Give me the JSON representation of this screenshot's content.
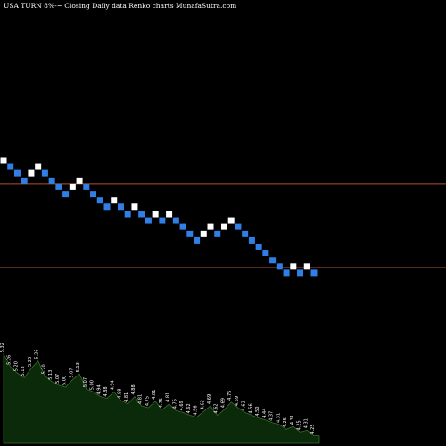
{
  "chart_data": {
    "type": "renko",
    "title": "USA TURN  8%-~  Closing Daily data  Renko  charts MunafaSutra.com",
    "colors": {
      "background": "#000000",
      "up_brick": "#ffffff",
      "down_brick": "#2f7fe6",
      "reference_line": "#b5512c",
      "volume_fill": "#0a2a0a",
      "volume_edge": "#3a6b2a"
    },
    "grid": false,
    "reference_levels": [
      {
        "name": "upper",
        "value": 5.1
      },
      {
        "name": "lower",
        "value": 4.3
      }
    ],
    "y_range": [
      2.6,
      6.85
    ],
    "bricks": [
      {
        "dir": "up",
        "value": 5.32
      },
      {
        "dir": "down",
        "value": 5.26
      },
      {
        "dir": "down",
        "value": 5.2
      },
      {
        "dir": "down",
        "value": 5.13
      },
      {
        "dir": "up",
        "value": 5.2
      },
      {
        "dir": "up",
        "value": 5.26
      },
      {
        "dir": "down",
        "value": 5.2
      },
      {
        "dir": "down",
        "value": 5.13
      },
      {
        "dir": "down",
        "value": 5.07
      },
      {
        "dir": "down",
        "value": 5.0
      },
      {
        "dir": "up",
        "value": 5.07
      },
      {
        "dir": "up",
        "value": 5.13
      },
      {
        "dir": "down",
        "value": 5.07
      },
      {
        "dir": "down",
        "value": 5.0
      },
      {
        "dir": "down",
        "value": 4.94
      },
      {
        "dir": "down",
        "value": 4.88
      },
      {
        "dir": "up",
        "value": 4.94
      },
      {
        "dir": "down",
        "value": 4.88
      },
      {
        "dir": "down",
        "value": 4.81
      },
      {
        "dir": "up",
        "value": 4.88
      },
      {
        "dir": "down",
        "value": 4.81
      },
      {
        "dir": "down",
        "value": 4.75
      },
      {
        "dir": "up",
        "value": 4.81
      },
      {
        "dir": "down",
        "value": 4.75
      },
      {
        "dir": "up",
        "value": 4.81
      },
      {
        "dir": "down",
        "value": 4.75
      },
      {
        "dir": "down",
        "value": 4.69
      },
      {
        "dir": "down",
        "value": 4.62
      },
      {
        "dir": "down",
        "value": 4.56
      },
      {
        "dir": "up",
        "value": 4.62
      },
      {
        "dir": "up",
        "value": 4.69
      },
      {
        "dir": "down",
        "value": 4.62
      },
      {
        "dir": "up",
        "value": 4.69
      },
      {
        "dir": "up",
        "value": 4.75
      },
      {
        "dir": "down",
        "value": 4.69
      },
      {
        "dir": "down",
        "value": 4.62
      },
      {
        "dir": "down",
        "value": 4.56
      },
      {
        "dir": "down",
        "value": 4.5
      },
      {
        "dir": "down",
        "value": 4.44
      },
      {
        "dir": "down",
        "value": 4.37
      },
      {
        "dir": "down",
        "value": 4.31
      },
      {
        "dir": "down",
        "value": 4.25
      },
      {
        "dir": "up",
        "value": 4.31
      },
      {
        "dir": "down",
        "value": 4.25
      },
      {
        "dir": "up",
        "value": 4.31
      },
      {
        "dir": "down",
        "value": 4.25
      }
    ],
    "volume_panel": {
      "labels": [
        "5.32",
        "5.26",
        "5.20",
        "5.13",
        "5.20",
        "5.26",
        "5.20",
        "5.13",
        "5.07",
        "5.00",
        "5.07",
        "5.13",
        "5.07",
        "5.00",
        "4.94",
        "4.88",
        "4.94",
        "4.88",
        "4.81",
        "4.88",
        "4.81",
        "4.75",
        "4.81",
        "4.75",
        "4.81",
        "4.75",
        "4.69",
        "4.62",
        "4.56",
        "4.62",
        "4.69",
        "4.62",
        "4.69",
        "4.75",
        "4.69",
        "4.62",
        "4.56",
        "4.50",
        "4.44",
        "4.37",
        "4.31",
        "4.25",
        "4.31",
        "4.25",
        "4.31",
        "4.25"
      ],
      "values": [
        0.95,
        0.82,
        0.75,
        0.7,
        0.8,
        0.88,
        0.72,
        0.66,
        0.62,
        0.6,
        0.68,
        0.74,
        0.58,
        0.55,
        0.5,
        0.48,
        0.55,
        0.46,
        0.42,
        0.5,
        0.4,
        0.38,
        0.45,
        0.36,
        0.42,
        0.35,
        0.33,
        0.3,
        0.28,
        0.34,
        0.4,
        0.3,
        0.36,
        0.44,
        0.38,
        0.33,
        0.3,
        0.27,
        0.25,
        0.22,
        0.2,
        0.15,
        0.18,
        0.12,
        0.14,
        0.08
      ]
    }
  }
}
